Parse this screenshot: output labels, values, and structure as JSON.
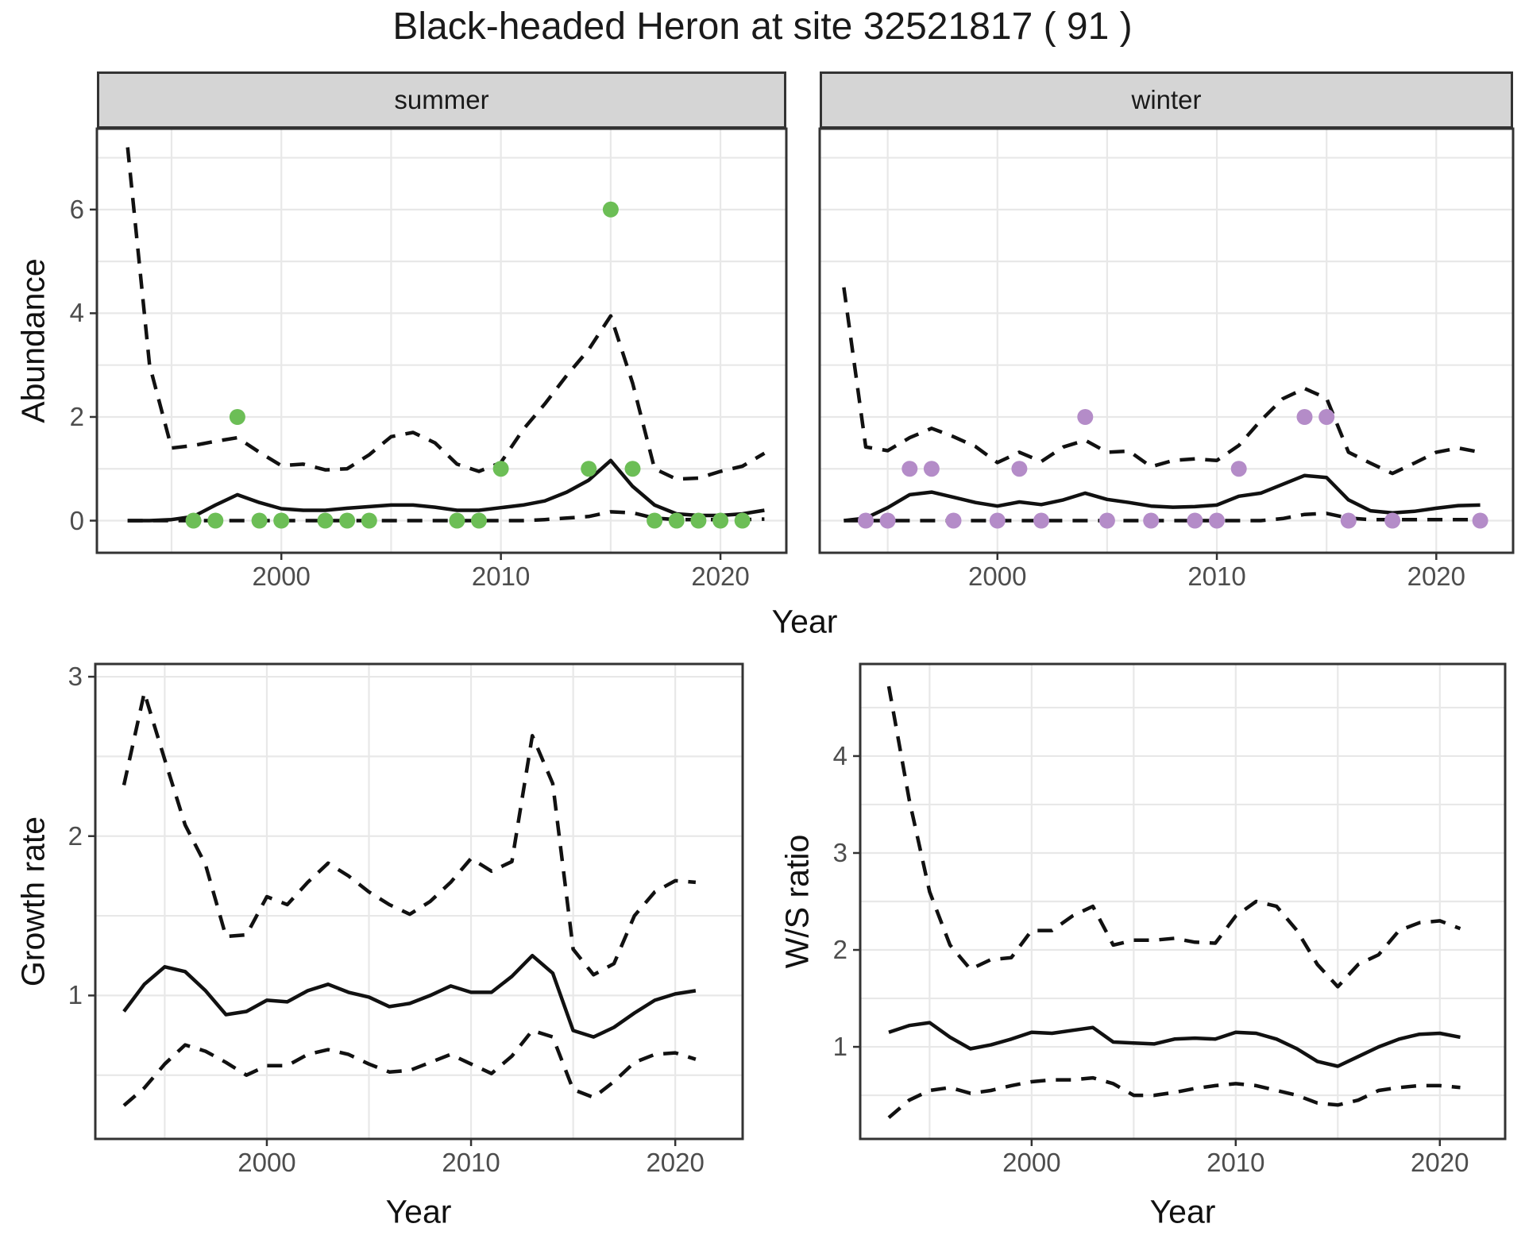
{
  "title": "Black-headed Heron at site 32521817 ( 91 )",
  "colors": {
    "summer_point": "#6CBE56",
    "winter_point": "#B48CC8",
    "line": "#111111",
    "grid": "#E8E8E8",
    "panel_border": "#333333",
    "tick_mark": "#333333",
    "tick_text": "#4D4D4D",
    "strip_fill": "#D5D5D5"
  },
  "chart_data": [
    {
      "id": "abundance-summer",
      "type": "line",
      "facet": "summer",
      "ylabel": "Abundance",
      "xlabel": "Year",
      "xlim": [
        1991.6,
        2023.0
      ],
      "ylim": [
        -0.62,
        7.56
      ],
      "xticks": [
        2000,
        2010,
        2020
      ],
      "yticks": [
        0,
        2,
        4,
        6
      ],
      "xgrid": [
        1995,
        2000,
        2005,
        2010,
        2015,
        2020
      ],
      "ygrid": [
        0,
        1,
        2,
        3,
        4,
        5,
        6,
        7
      ],
      "legend": "none",
      "x": [
        1993,
        1994,
        1995,
        1996,
        1997,
        1998,
        1999,
        2000,
        2001,
        2002,
        2003,
        2004,
        2005,
        2006,
        2007,
        2008,
        2009,
        2010,
        2011,
        2012,
        2013,
        2014,
        2015,
        2016,
        2017,
        2018,
        2019,
        2020,
        2021,
        2022
      ],
      "series": [
        {
          "name": "mean",
          "style": "solid",
          "values": [
            0,
            0,
            0.02,
            0.08,
            0.3,
            0.5,
            0.35,
            0.23,
            0.2,
            0.2,
            0.24,
            0.27,
            0.3,
            0.3,
            0.26,
            0.2,
            0.2,
            0.25,
            0.3,
            0.38,
            0.55,
            0.78,
            1.16,
            0.66,
            0.3,
            0.13,
            0.1,
            0.1,
            0.13,
            0.2
          ]
        },
        {
          "name": "upper95",
          "style": "dashed",
          "values": [
            7.2,
            3.0,
            1.4,
            1.45,
            1.53,
            1.6,
            1.32,
            1.06,
            1.09,
            0.98,
            1.0,
            1.27,
            1.62,
            1.7,
            1.5,
            1.09,
            0.95,
            1.12,
            1.75,
            2.25,
            2.8,
            3.3,
            3.95,
            2.65,
            1.0,
            0.8,
            0.82,
            0.95,
            1.05,
            1.3
          ]
        },
        {
          "name": "lower95",
          "style": "dashed",
          "values": [
            0,
            0,
            0,
            0,
            0,
            0,
            0,
            0,
            0,
            0,
            0,
            0,
            0,
            0,
            0,
            0,
            0,
            0,
            0,
            0.02,
            0.05,
            0.08,
            0.17,
            0.15,
            0.05,
            0.02,
            0.02,
            0.02,
            0.02,
            0.03
          ]
        }
      ],
      "points": {
        "name": "observed-count",
        "color": "#6CBE56",
        "data": [
          [
            1996,
            0
          ],
          [
            1997,
            0
          ],
          [
            1998,
            2
          ],
          [
            1999,
            0
          ],
          [
            2000,
            0
          ],
          [
            2002,
            0
          ],
          [
            2003,
            0
          ],
          [
            2004,
            0
          ],
          [
            2008,
            0
          ],
          [
            2009,
            0
          ],
          [
            2010,
            1
          ],
          [
            2014,
            1
          ],
          [
            2015,
            6
          ],
          [
            2016,
            1
          ],
          [
            2017,
            0
          ],
          [
            2018,
            0
          ],
          [
            2019,
            0
          ],
          [
            2020,
            0
          ],
          [
            2021,
            0
          ]
        ]
      }
    },
    {
      "id": "abundance-winter",
      "type": "line",
      "facet": "winter",
      "ylabel": "Abundance",
      "xlabel": "Year",
      "xlim": [
        1991.9,
        2023.5
      ],
      "ylim": [
        -0.62,
        7.56
      ],
      "xticks": [
        2000,
        2010,
        2020
      ],
      "yticks": [
        0,
        2,
        4,
        6
      ],
      "xgrid": [
        1995,
        2000,
        2005,
        2010,
        2015,
        2020
      ],
      "ygrid": [
        0,
        1,
        2,
        3,
        4,
        5,
        6,
        7
      ],
      "legend": "none",
      "x": [
        1993,
        1994,
        1995,
        1996,
        1997,
        1998,
        1999,
        2000,
        2001,
        2002,
        2003,
        2004,
        2005,
        2006,
        2007,
        2008,
        2009,
        2010,
        2011,
        2012,
        2013,
        2014,
        2015,
        2016,
        2017,
        2018,
        2019,
        2020,
        2021,
        2022
      ],
      "series": [
        {
          "name": "mean",
          "style": "solid",
          "values": [
            0,
            0.05,
            0.25,
            0.5,
            0.55,
            0.45,
            0.35,
            0.28,
            0.36,
            0.31,
            0.4,
            0.53,
            0.41,
            0.35,
            0.28,
            0.26,
            0.27,
            0.3,
            0.47,
            0.53,
            0.7,
            0.87,
            0.83,
            0.4,
            0.19,
            0.15,
            0.18,
            0.24,
            0.29,
            0.3
          ]
        },
        {
          "name": "upper95",
          "style": "dashed",
          "values": [
            4.5,
            1.42,
            1.35,
            1.6,
            1.78,
            1.62,
            1.43,
            1.12,
            1.32,
            1.14,
            1.42,
            1.55,
            1.32,
            1.34,
            1.04,
            1.16,
            1.19,
            1.16,
            1.45,
            1.93,
            2.35,
            2.55,
            2.36,
            1.32,
            1.11,
            0.91,
            1.11,
            1.32,
            1.4,
            1.32
          ]
        },
        {
          "name": "lower95",
          "style": "dashed",
          "values": [
            0,
            0,
            0,
            0,
            0,
            0,
            0,
            0,
            0,
            0,
            0,
            0,
            0,
            0,
            0,
            0,
            0,
            0,
            0,
            0,
            0.04,
            0.12,
            0.14,
            0.05,
            0.02,
            0.02,
            0.02,
            0.02,
            0.02,
            0.02
          ]
        }
      ],
      "points": {
        "name": "observed-count",
        "color": "#B48CC8",
        "data": [
          [
            1994,
            0
          ],
          [
            1995,
            0
          ],
          [
            1996,
            1
          ],
          [
            1997,
            1
          ],
          [
            1998,
            0
          ],
          [
            2000,
            0
          ],
          [
            2001,
            1
          ],
          [
            2002,
            0
          ],
          [
            2004,
            2
          ],
          [
            2005,
            0
          ],
          [
            2007,
            0
          ],
          [
            2009,
            0
          ],
          [
            2010,
            0
          ],
          [
            2011,
            1
          ],
          [
            2014,
            2
          ],
          [
            2015,
            2
          ],
          [
            2016,
            0
          ],
          [
            2018,
            0
          ],
          [
            2022,
            0
          ]
        ]
      }
    },
    {
      "id": "growth-rate",
      "type": "line",
      "facet": null,
      "ylabel": "Growth rate",
      "xlabel": "Year",
      "xlim": [
        1991.6,
        2023.3
      ],
      "ylim": [
        0.1,
        3.08
      ],
      "xticks": [
        2000,
        2010,
        2020
      ],
      "yticks": [
        1,
        2,
        3
      ],
      "xgrid": [
        1995,
        2000,
        2005,
        2010,
        2015,
        2020
      ],
      "ygrid": [
        0.5,
        1,
        1.5,
        2,
        2.5,
        3
      ],
      "legend": "none",
      "x": [
        1993,
        1994,
        1995,
        1996,
        1997,
        1998,
        1999,
        2000,
        2001,
        2002,
        2003,
        2004,
        2005,
        2006,
        2007,
        2008,
        2009,
        2010,
        2011,
        2012,
        2013,
        2014,
        2015,
        2016,
        2017,
        2018,
        2019,
        2020,
        2021
      ],
      "series": [
        {
          "name": "mean",
          "style": "solid",
          "values": [
            0.9,
            1.07,
            1.18,
            1.15,
            1.03,
            0.88,
            0.9,
            0.97,
            0.96,
            1.03,
            1.07,
            1.02,
            0.99,
            0.93,
            0.95,
            1.0,
            1.06,
            1.02,
            1.02,
            1.12,
            1.25,
            1.14,
            0.78,
            0.74,
            0.8,
            0.89,
            0.97,
            1.01,
            1.03
          ]
        },
        {
          "name": "upper95",
          "style": "dashed",
          "values": [
            2.32,
            2.9,
            2.48,
            2.07,
            1.82,
            1.37,
            1.38,
            1.62,
            1.57,
            1.71,
            1.83,
            1.75,
            1.65,
            1.57,
            1.51,
            1.59,
            1.71,
            1.86,
            1.78,
            1.84,
            2.63,
            2.33,
            1.29,
            1.13,
            1.2,
            1.5,
            1.65,
            1.72,
            1.71
          ]
        },
        {
          "name": "lower95",
          "style": "dashed",
          "values": [
            0.31,
            0.42,
            0.57,
            0.69,
            0.65,
            0.58,
            0.5,
            0.56,
            0.56,
            0.63,
            0.66,
            0.63,
            0.57,
            0.52,
            0.53,
            0.58,
            0.63,
            0.57,
            0.51,
            0.62,
            0.78,
            0.74,
            0.41,
            0.36,
            0.46,
            0.58,
            0.63,
            0.64,
            0.6
          ]
        }
      ],
      "points": null
    },
    {
      "id": "ws-ratio",
      "type": "line",
      "facet": null,
      "ylabel": "W/S ratio",
      "xlabel": "Year",
      "xlim": [
        1991.6,
        2023.2
      ],
      "ylim": [
        0.05,
        4.95
      ],
      "xticks": [
        2000,
        2010,
        2020
      ],
      "yticks": [
        1,
        2,
        3,
        4
      ],
      "xgrid": [
        1995,
        2000,
        2005,
        2010,
        2015,
        2020
      ],
      "ygrid": [
        0.5,
        1,
        1.5,
        2,
        2.5,
        3,
        3.5,
        4,
        4.5
      ],
      "legend": "none",
      "x": [
        1993,
        1994,
        1995,
        1996,
        1997,
        1998,
        1999,
        2000,
        2001,
        2002,
        2003,
        2004,
        2005,
        2006,
        2007,
        2008,
        2009,
        2010,
        2011,
        2012,
        2013,
        2014,
        2015,
        2016,
        2017,
        2018,
        2019,
        2020,
        2021
      ],
      "series": [
        {
          "name": "mean",
          "style": "solid",
          "values": [
            1.15,
            1.22,
            1.25,
            1.1,
            0.98,
            1.02,
            1.08,
            1.15,
            1.14,
            1.17,
            1.2,
            1.05,
            1.04,
            1.03,
            1.08,
            1.09,
            1.08,
            1.15,
            1.14,
            1.08,
            0.98,
            0.85,
            0.8,
            0.9,
            1.0,
            1.08,
            1.13,
            1.14,
            1.1
          ]
        },
        {
          "name": "upper95",
          "style": "dashed",
          "values": [
            4.72,
            3.55,
            2.6,
            2.05,
            1.8,
            1.9,
            1.92,
            2.2,
            2.2,
            2.35,
            2.45,
            2.05,
            2.1,
            2.1,
            2.12,
            2.08,
            2.07,
            2.35,
            2.5,
            2.45,
            2.2,
            1.85,
            1.62,
            1.85,
            1.95,
            2.2,
            2.28,
            2.3,
            2.22
          ]
        },
        {
          "name": "lower95",
          "style": "dashed",
          "values": [
            0.27,
            0.45,
            0.55,
            0.58,
            0.52,
            0.55,
            0.6,
            0.64,
            0.66,
            0.66,
            0.68,
            0.62,
            0.5,
            0.5,
            0.53,
            0.57,
            0.6,
            0.62,
            0.6,
            0.55,
            0.5,
            0.42,
            0.4,
            0.45,
            0.55,
            0.58,
            0.6,
            0.6,
            0.58
          ]
        }
      ],
      "points": null
    }
  ]
}
